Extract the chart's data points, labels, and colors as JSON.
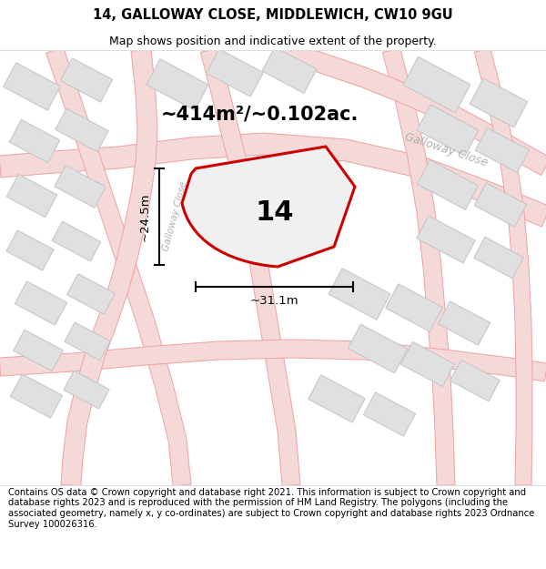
{
  "title": "14, GALLOWAY CLOSE, MIDDLEWICH, CW10 9GU",
  "subtitle": "Map shows position and indicative extent of the property.",
  "area_text": "~414m²/~0.102ac.",
  "plot_number": "14",
  "dim_width": "~31.1m",
  "dim_height": "~24.5m",
  "bg_color": "#ffffff",
  "map_bg": "#f8f8f8",
  "road_line_color": "#f0a0a0",
  "road_fill_color": "#f5d8d8",
  "block_fill": "#e0e0e0",
  "block_edge": "#c8c8c8",
  "plot_fill": "#f0f0f0",
  "plot_edge": "#cc0000",
  "galloway_close_label_color": "#b0b0b0",
  "footer_text": "Contains OS data © Crown copyright and database right 2021. This information is subject to Crown copyright and database rights 2023 and is reproduced with the permission of HM Land Registry. The polygons (including the associated geometry, namely x, y co-ordinates) are subject to Crown copyright and database rights 2023 Ordnance Survey 100026316.",
  "title_fontsize": 10.5,
  "subtitle_fontsize": 9,
  "footer_fontsize": 7.2,
  "area_fontsize": 15,
  "plot_label_fontsize": 22,
  "dim_fontsize": 9.5,
  "road_label_fontsize": 9
}
